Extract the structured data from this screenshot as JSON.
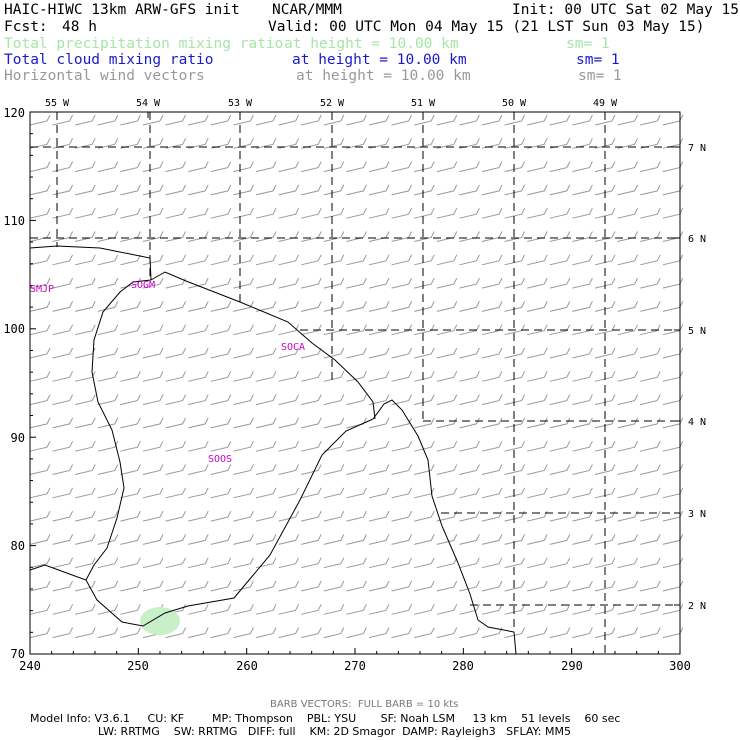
{
  "header": {
    "model_title": "HAIC-HIWC 13km ARW-GFS init",
    "org": "NCAR/MMM",
    "init": "Init: 00 UTC Sat 02 May 15",
    "fcst_label": "Fcst:",
    "fcst_value": "48 h",
    "valid": "Valid: 00 UTC Mon 04 May 15 (21 LST Sun 03 May 15)",
    "fields": [
      {
        "name": "Total precipitation mixing ratio",
        "height": "at height = 10.00 km",
        "sm": "sm= 1",
        "color": "#a6e6a6"
      },
      {
        "name": "Total cloud mixing ratio",
        "height": "at height = 10.00 km",
        "sm": "sm= 1",
        "color": "#1a1acc"
      },
      {
        "name": "Horizontal wind vectors",
        "height": "at height = 10.00 km",
        "sm": "sm= 1",
        "color": "#999999"
      }
    ]
  },
  "map": {
    "x_axis_ticks": [
      "240",
      "250",
      "260",
      "270",
      "280",
      "290",
      "300"
    ],
    "y_axis_ticks": [
      "70",
      "80",
      "90",
      "100",
      "110",
      "120"
    ],
    "lon_labels": [
      "55 W",
      "54 W",
      "53 W",
      "52 W",
      "51 W",
      "50 W",
      "49 W"
    ],
    "lat_labels": [
      "7 N",
      "6 N",
      "5 N",
      "4 N",
      "3 N",
      "2 N"
    ],
    "stations": [
      "SMJP",
      "SOGM",
      "SOCA",
      "SOOS"
    ],
    "colors": {
      "coast": "#000000",
      "grid": "#000000",
      "station": "#cc00cc",
      "barb": "#999999",
      "precip": "#c8f0c8"
    }
  },
  "footer": {
    "barb_note": "BARB VECTORS:  FULL BARB = 10 kts",
    "model_info_1": "Model Info: V3.6.1     CU: KF        MP: Thompson    PBL: YSU       SF: Noah LSM     13 km    51 levels    60 sec",
    "model_info_2": "LW: RRTMG    SW: RRTMG   DIFF: full    KM: 2D Smagor  DAMP: Rayleigh3   SFLAY: MM5"
  }
}
